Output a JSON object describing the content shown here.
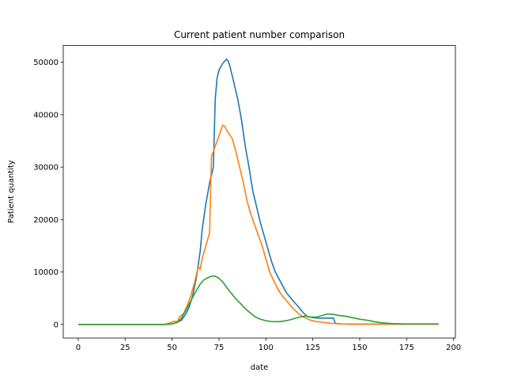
{
  "chart_data": {
    "type": "line",
    "title": "Current patient number comparison",
    "xlabel": "date",
    "ylabel": "Patient quantity",
    "xlim": [
      -8,
      201
    ],
    "ylim": [
      -2600,
      53200
    ],
    "x_ticks": [
      0,
      25,
      50,
      75,
      100,
      125,
      150,
      175,
      200
    ],
    "y_ticks": [
      0,
      10000,
      20000,
      30000,
      40000,
      50000
    ],
    "grid": false,
    "legend": "none",
    "series": [
      {
        "color": "#1f77b4",
        "points": [
          [
            0,
            0
          ],
          [
            10,
            0
          ],
          [
            20,
            0
          ],
          [
            30,
            0
          ],
          [
            40,
            0
          ],
          [
            46,
            0
          ],
          [
            50,
            100
          ],
          [
            52,
            300
          ],
          [
            55,
            800
          ],
          [
            57,
            1800
          ],
          [
            59,
            3200
          ],
          [
            61,
            5500
          ],
          [
            63,
            9000
          ],
          [
            65,
            14000
          ],
          [
            66,
            18000
          ],
          [
            68,
            23000
          ],
          [
            70,
            27000
          ],
          [
            72,
            30000
          ],
          [
            73,
            43000
          ],
          [
            74,
            47000
          ],
          [
            75,
            48500
          ],
          [
            77,
            49800
          ],
          [
            79,
            50600
          ],
          [
            80,
            50200
          ],
          [
            81,
            49000
          ],
          [
            83,
            46000
          ],
          [
            85,
            43000
          ],
          [
            87,
            39000
          ],
          [
            89,
            34000
          ],
          [
            91,
            30000
          ],
          [
            93,
            25500
          ],
          [
            95,
            22500
          ],
          [
            97,
            19500
          ],
          [
            99,
            17000
          ],
          [
            101,
            14500
          ],
          [
            103,
            12000
          ],
          [
            105,
            10000
          ],
          [
            108,
            8000
          ],
          [
            111,
            6000
          ],
          [
            114,
            4700
          ],
          [
            117,
            3500
          ],
          [
            120,
            2200
          ],
          [
            122,
            1500
          ],
          [
            125,
            1300
          ],
          [
            128,
            1200
          ],
          [
            131,
            1200
          ],
          [
            134,
            1200
          ],
          [
            136,
            1200
          ],
          [
            137,
            200
          ],
          [
            140,
            100
          ],
          [
            145,
            50
          ],
          [
            150,
            50
          ],
          [
            160,
            50
          ],
          [
            170,
            50
          ],
          [
            180,
            50
          ],
          [
            192,
            50
          ]
        ]
      },
      {
        "color": "#ff7f0e",
        "points": [
          [
            0,
            0
          ],
          [
            10,
            0
          ],
          [
            20,
            0
          ],
          [
            30,
            0
          ],
          [
            40,
            0
          ],
          [
            46,
            0
          ],
          [
            49,
            300
          ],
          [
            51,
            600
          ],
          [
            53,
            600
          ],
          [
            54,
            1500
          ],
          [
            56,
            2000
          ],
          [
            58,
            3500
          ],
          [
            60,
            5500
          ],
          [
            62,
            8000
          ],
          [
            64,
            11000
          ],
          [
            65,
            10500
          ],
          [
            66,
            12500
          ],
          [
            68,
            15000
          ],
          [
            70,
            17500
          ],
          [
            71,
            32000
          ],
          [
            73,
            34000
          ],
          [
            75,
            36000
          ],
          [
            77,
            38000
          ],
          [
            78,
            37800
          ],
          [
            80,
            36500
          ],
          [
            82,
            35500
          ],
          [
            84,
            33000
          ],
          [
            86,
            30000
          ],
          [
            88,
            27000
          ],
          [
            90,
            23500
          ],
          [
            92,
            21000
          ],
          [
            94,
            19000
          ],
          [
            96,
            17000
          ],
          [
            98,
            15000
          ],
          [
            100,
            12500
          ],
          [
            102,
            10000
          ],
          [
            104,
            8500
          ],
          [
            106,
            7000
          ],
          [
            108,
            5800
          ],
          [
            111,
            4500
          ],
          [
            114,
            3200
          ],
          [
            117,
            2200
          ],
          [
            120,
            1400
          ],
          [
            123,
            900
          ],
          [
            126,
            600
          ],
          [
            130,
            400
          ],
          [
            135,
            200
          ],
          [
            140,
            100
          ],
          [
            145,
            50
          ],
          [
            150,
            50
          ],
          [
            160,
            50
          ],
          [
            170,
            50
          ],
          [
            180,
            50
          ],
          [
            192,
            50
          ]
        ]
      },
      {
        "color": "#2ca02c",
        "points": [
          [
            0,
            0
          ],
          [
            10,
            0
          ],
          [
            20,
            0
          ],
          [
            30,
            0
          ],
          [
            40,
            0
          ],
          [
            46,
            0
          ],
          [
            50,
            100
          ],
          [
            53,
            400
          ],
          [
            55,
            1200
          ],
          [
            57,
            2500
          ],
          [
            59,
            3800
          ],
          [
            61,
            5200
          ],
          [
            63,
            6500
          ],
          [
            65,
            7700
          ],
          [
            67,
            8500
          ],
          [
            69,
            8900
          ],
          [
            71,
            9200
          ],
          [
            73,
            9200
          ],
          [
            75,
            8800
          ],
          [
            77,
            8100
          ],
          [
            79,
            7100
          ],
          [
            81,
            6200
          ],
          [
            83,
            5300
          ],
          [
            85,
            4500
          ],
          [
            87,
            3800
          ],
          [
            89,
            3000
          ],
          [
            91,
            2400
          ],
          [
            93,
            1800
          ],
          [
            95,
            1300
          ],
          [
            97,
            1000
          ],
          [
            100,
            700
          ],
          [
            103,
            550
          ],
          [
            106,
            500
          ],
          [
            109,
            600
          ],
          [
            112,
            800
          ],
          [
            115,
            1100
          ],
          [
            118,
            1400
          ],
          [
            121,
            1600
          ],
          [
            124,
            1400
          ],
          [
            127,
            1400
          ],
          [
            130,
            1700
          ],
          [
            133,
            2000
          ],
          [
            136,
            1900
          ],
          [
            139,
            1700
          ],
          [
            142,
            1600
          ],
          [
            146,
            1300
          ],
          [
            150,
            1000
          ],
          [
            154,
            800
          ],
          [
            158,
            500
          ],
          [
            162,
            300
          ],
          [
            168,
            150
          ],
          [
            175,
            100
          ],
          [
            185,
            100
          ],
          [
            192,
            100
          ]
        ]
      }
    ]
  }
}
